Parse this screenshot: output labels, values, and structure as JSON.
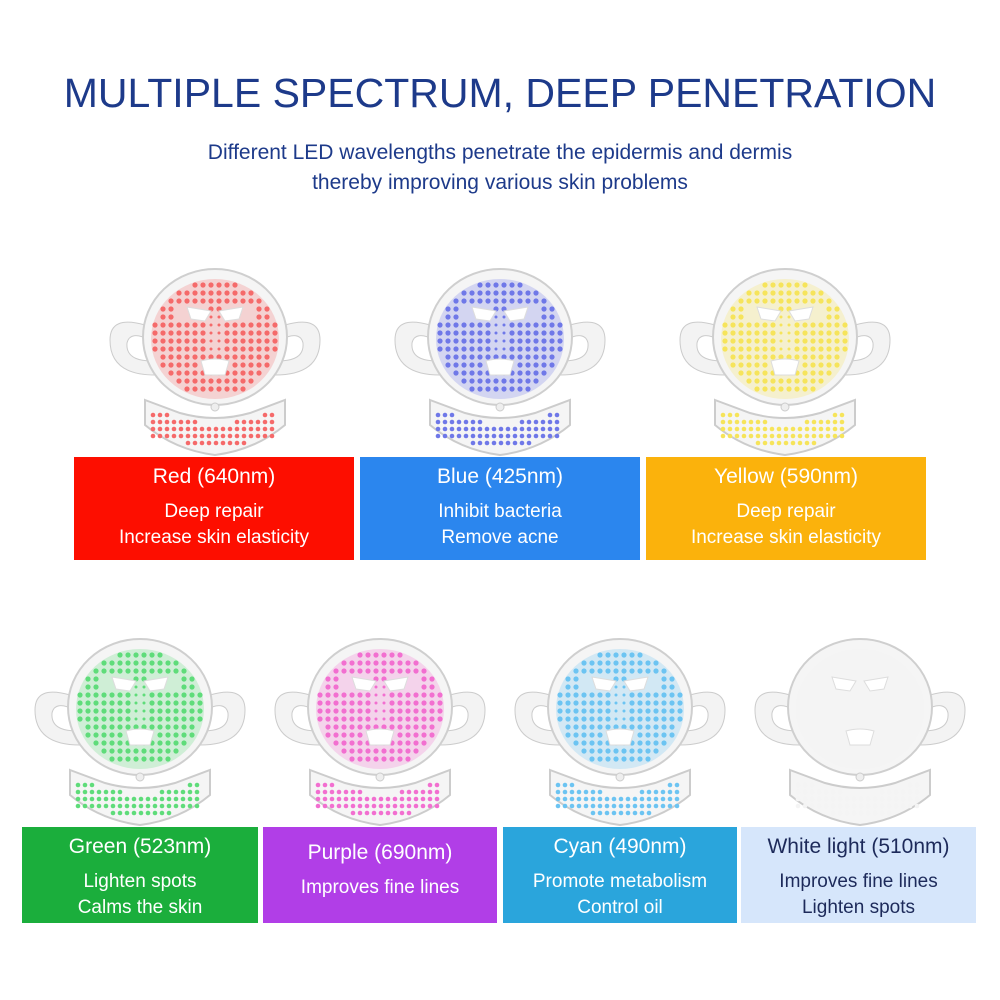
{
  "header": {
    "title": "MULTIPLE SPECTRUM, DEEP PENETRATION",
    "subtitle_line1": "Different LED wavelengths penetrate the epidermis and dermis",
    "subtitle_line2": "thereby improving various skin problems"
  },
  "lights": [
    {
      "name": "Red (640nm)",
      "desc": [
        "Deep repair",
        "Increase skin elasticity"
      ],
      "box_color": "#fd0e00",
      "led_color": "#f56a6a",
      "text_color": "#ffffff"
    },
    {
      "name": "Blue (425nm)",
      "desc": [
        "Inhibit bacteria",
        "Remove acne"
      ],
      "box_color": "#2b86ee",
      "led_color": "#6f78e8",
      "text_color": "#ffffff"
    },
    {
      "name": "Yellow (590nm)",
      "desc": [
        "Deep repair",
        "Increase skin elasticity"
      ],
      "box_color": "#fbb20c",
      "led_color": "#f6e45a",
      "text_color": "#ffffff"
    },
    {
      "name": "Green (523nm)",
      "desc": [
        "Lighten spots",
        "Calms the skin"
      ],
      "box_color": "#1bae3c",
      "led_color": "#5fdc7a",
      "text_color": "#ffffff"
    },
    {
      "name": "Purple (690nm)",
      "desc": [
        "Improves fine lines"
      ],
      "box_color": "#b13ee7",
      "led_color": "#f26fd0",
      "text_color": "#ffffff"
    },
    {
      "name": "Cyan (490nm)",
      "desc": [
        "Promote metabolism",
        "Control oil"
      ],
      "box_color": "#2aa5dc",
      "led_color": "#6cc4f2",
      "text_color": "#ffffff"
    },
    {
      "name": "White light (510nm)",
      "desc": [
        "Improves fine lines",
        "Lighten spots"
      ],
      "box_color": "#d6e6fb",
      "led_color": "#f4f4f4",
      "text_color": "#1d2a5a"
    }
  ]
}
